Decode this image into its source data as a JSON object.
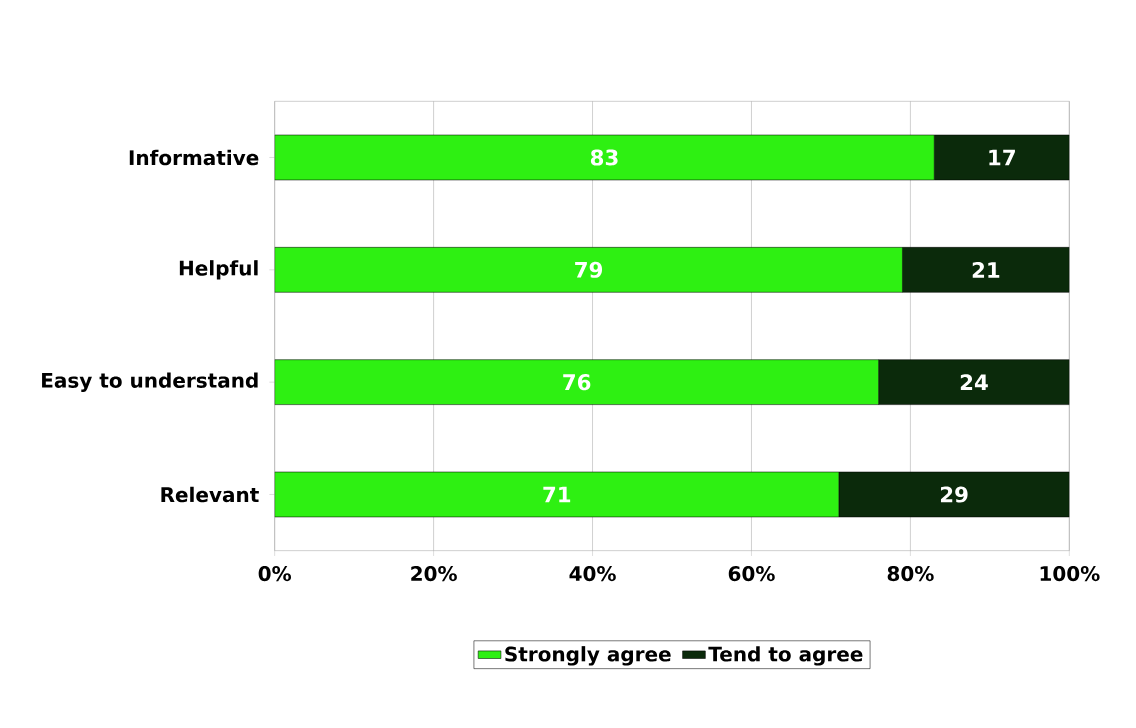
{
  "chart_data": {
    "type": "bar",
    "orientation": "horizontal",
    "stacked": true,
    "categories": [
      "Informative",
      "Helpful",
      "Easy to understand",
      "Relevant"
    ],
    "series": [
      {
        "name": "Strongly agree",
        "color": "#2ef012",
        "values": [
          83,
          79,
          76,
          71
        ]
      },
      {
        "name": "Tend to agree",
        "color": "#0b2a0b",
        "values": [
          17,
          21,
          24,
          29
        ]
      }
    ],
    "xlim": [
      0,
      100
    ],
    "xticks": [
      {
        "value": 0,
        "label": "0%"
      },
      {
        "value": 20,
        "label": "20%"
      },
      {
        "value": 40,
        "label": "40%"
      },
      {
        "value": 60,
        "label": "60%"
      },
      {
        "value": 80,
        "label": "80%"
      },
      {
        "value": 100,
        "label": "100%"
      }
    ],
    "grid": "x",
    "legend": "bottom",
    "data_labels": true
  }
}
